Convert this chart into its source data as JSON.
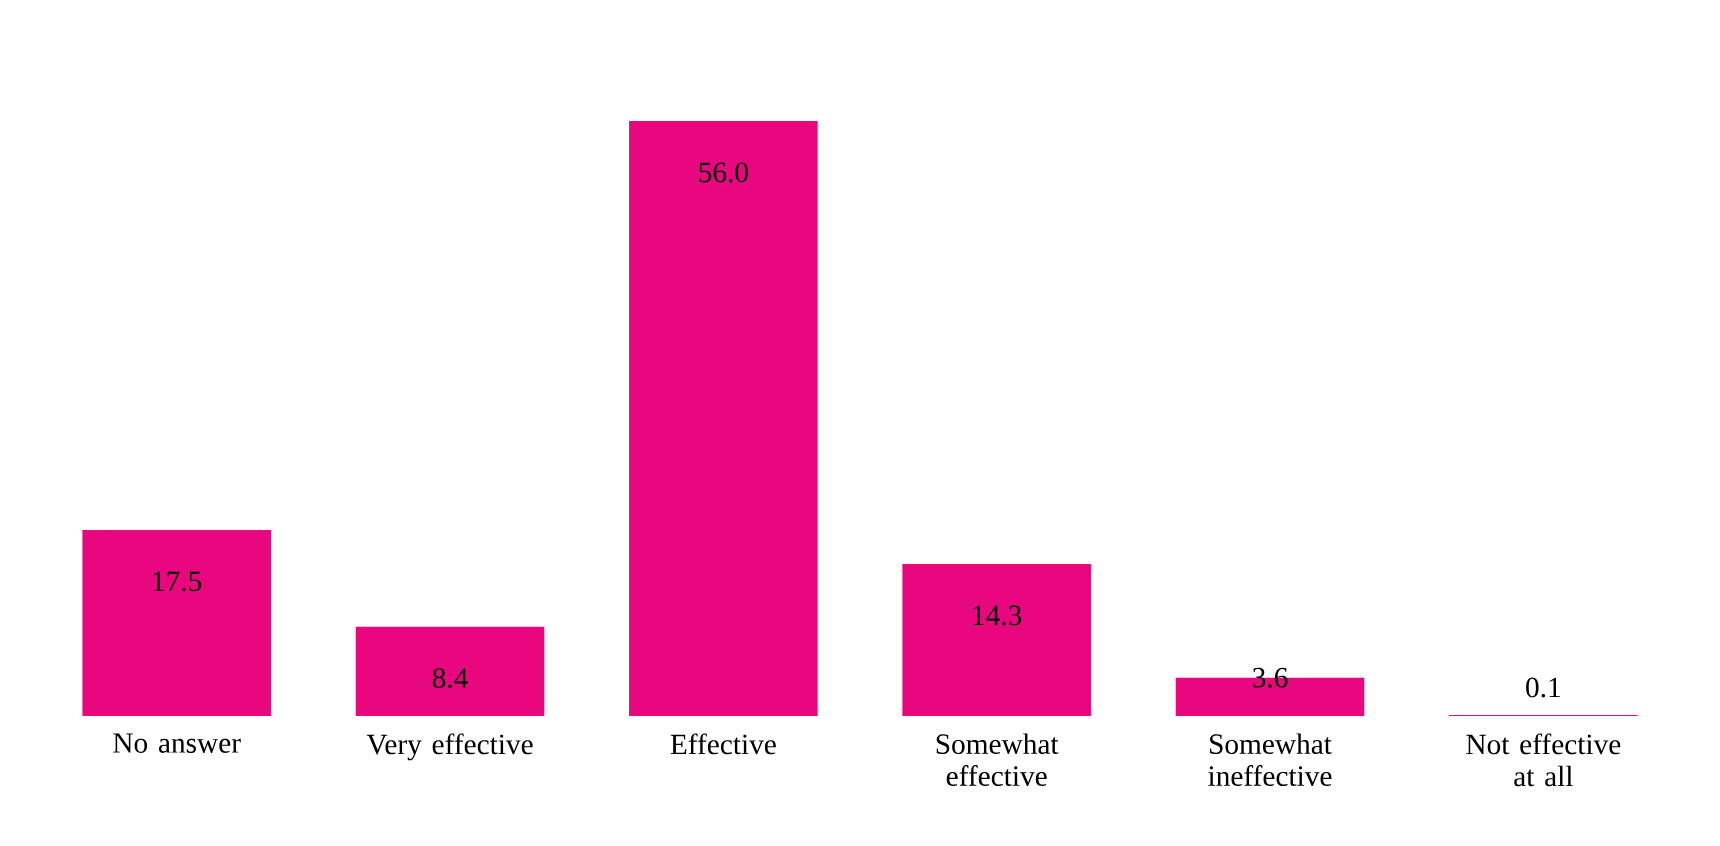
{
  "chart_data": {
    "type": "bar",
    "categories": [
      "No answer",
      "Very effective",
      "Effective",
      "Somewhat effective",
      "Somewhat ineffective",
      "Not effective at all"
    ],
    "values": [
      17.5,
      8.4,
      56.0,
      14.3,
      3.6,
      0.1
    ],
    "color": "#e8077f",
    "value_labels": [
      "17.5",
      "8.4",
      "56.0",
      "14.3",
      "3.6",
      "0.1"
    ]
  }
}
